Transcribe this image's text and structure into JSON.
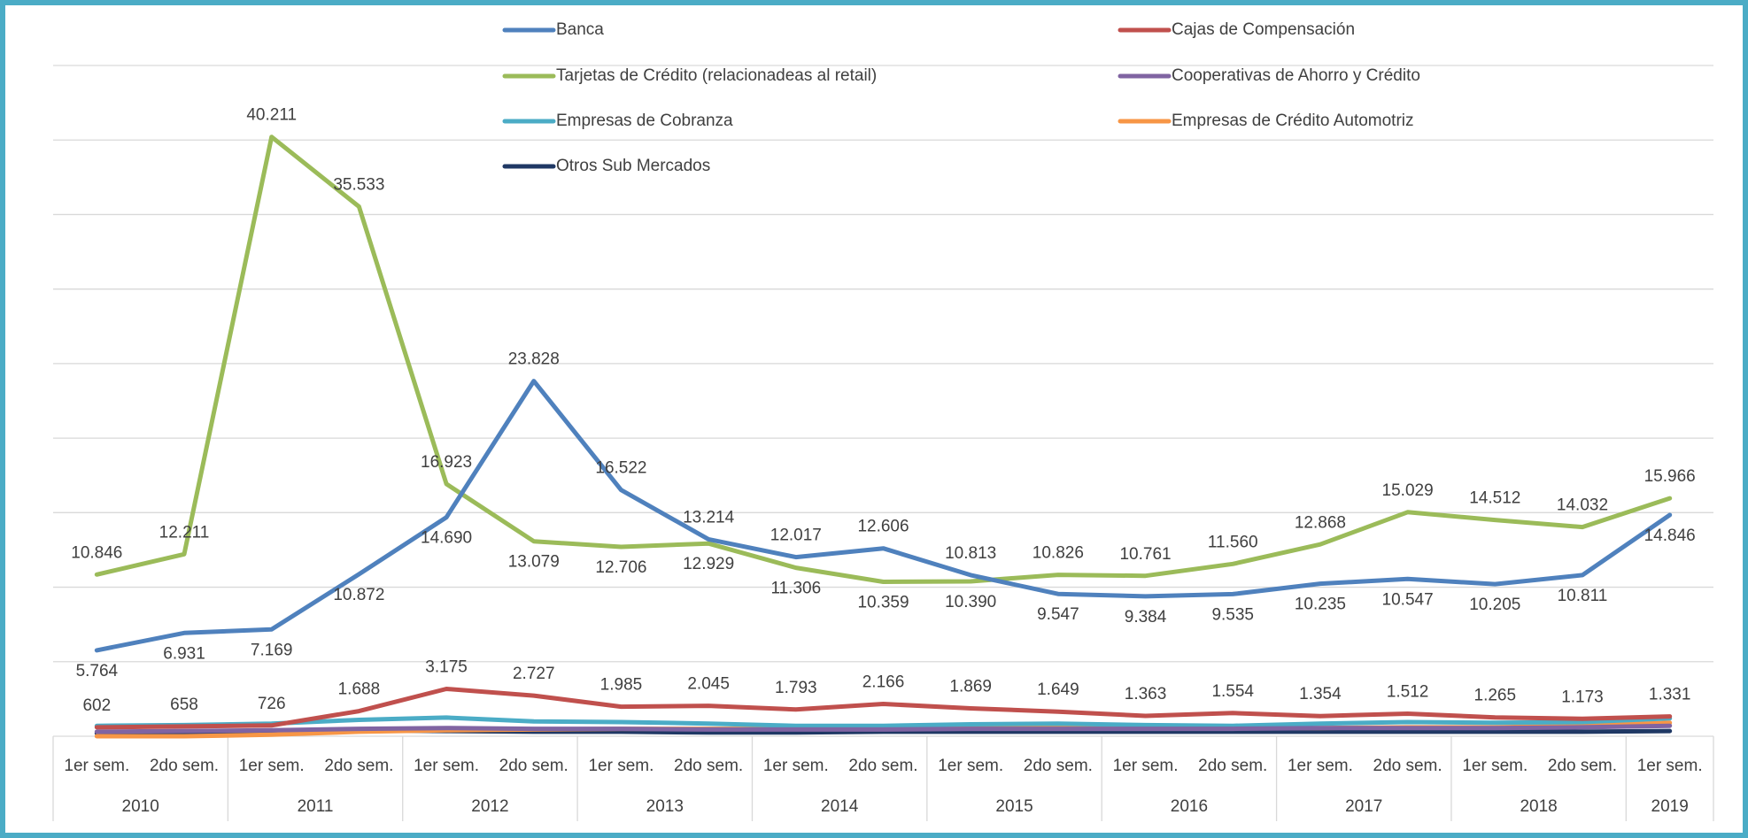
{
  "chart_data": {
    "type": "line",
    "categories": [
      "1er sem.",
      "2do sem.",
      "1er sem.",
      "2do sem.",
      "1er sem.",
      "2do sem.",
      "1er sem.",
      "2do sem.",
      "1er sem.",
      "2do sem.",
      "1er sem.",
      "2do sem.",
      "1er sem.",
      "2do sem.",
      "1er sem.",
      "2do sem.",
      "1er sem.",
      "2do sem.",
      "1er sem."
    ],
    "years": [
      "2010",
      null,
      "2011",
      null,
      "2012",
      null,
      "2013",
      null,
      "2014",
      null,
      "2015",
      null,
      "2016",
      null,
      "2017",
      null,
      "2018",
      null,
      "2019"
    ],
    "ylim": [
      0,
      45000
    ],
    "yticks": [
      0,
      5000,
      10000,
      15000,
      20000,
      25000,
      30000,
      35000,
      40000,
      45000
    ],
    "show_ytick_labels": false,
    "grid": true,
    "legend": "top",
    "series": [
      {
        "name": "Banca",
        "color": "#4f81bd",
        "values": [
          5764,
          6931,
          7169,
          10872,
          14690,
          23828,
          16522,
          13214,
          12017,
          12606,
          10813,
          9547,
          9384,
          9535,
          10235,
          10547,
          10205,
          10811,
          14846
        ],
        "value_labels": [
          "5.764",
          "6.931",
          "7.169",
          "10.872",
          "14.690",
          "23.828",
          "16.522",
          "13.214",
          "12.017",
          "12.606",
          "10.813",
          "9.547",
          "9.384",
          "9.535",
          "10.235",
          "10.547",
          "10.205",
          "10.811",
          "14.846"
        ]
      },
      {
        "name": "Cajas de Compensación",
        "color": "#c0504d",
        "values": [
          602,
          658,
          726,
          1688,
          3175,
          2727,
          1985,
          2045,
          1793,
          2166,
          1869,
          1649,
          1363,
          1554,
          1354,
          1512,
          1265,
          1173,
          1331
        ],
        "value_labels": [
          "602",
          "658",
          "726",
          "1.688",
          "3.175",
          "2.727",
          "1.985",
          "2.045",
          "1.793",
          "2.166",
          "1.869",
          "1.649",
          "1.363",
          "1.554",
          "1.354",
          "1.512",
          "1.265",
          "1.173",
          "1.331"
        ]
      },
      {
        "name": "Tarjetas de Crédito (relacionadeas al retail)",
        "color": "#9bbb59",
        "values": [
          10846,
          12211,
          40211,
          35533,
          16923,
          13079,
          12706,
          12929,
          11306,
          10359,
          10390,
          10826,
          10761,
          11560,
          12868,
          15029,
          14512,
          14032,
          15966
        ],
        "value_labels": [
          "10.846",
          "12.211",
          "40.211",
          "35.533",
          "16.923",
          "13.079",
          "12.706",
          "12.929",
          "11.306",
          "10.359",
          "10.390",
          "10.826",
          "10.761",
          "11.560",
          "12.868",
          "15.029",
          "14.512",
          "14.032",
          "15.966"
        ]
      },
      {
        "name": "Cooperativas de Ahorro y Crédito",
        "color": "#8064a2",
        "values": [
          300,
          350,
          400,
          500,
          550,
          500,
          500,
          450,
          450,
          450,
          500,
          500,
          500,
          500,
          550,
          550,
          550,
          600,
          700
        ]
      },
      {
        "name": "Empresas de Cobranza",
        "color": "#4bacc6",
        "values": [
          700,
          750,
          850,
          1100,
          1250,
          1000,
          950,
          850,
          700,
          700,
          800,
          850,
          750,
          700,
          850,
          950,
          900,
          950,
          1200
        ]
      },
      {
        "name": "Empresas de Crédito Automotriz",
        "color": "#f79646",
        "values": [
          0,
          0,
          100,
          300,
          400,
          450,
          500,
          500,
          500,
          550,
          550,
          600,
          550,
          550,
          550,
          600,
          600,
          700,
          900
        ]
      },
      {
        "name": "Otros Sub Mercados",
        "color": "#1f3864",
        "values": [
          200,
          250,
          300,
          400,
          350,
          300,
          300,
          250,
          250,
          300,
          300,
          300,
          300,
          300,
          300,
          300,
          300,
          300,
          350
        ]
      }
    ]
  }
}
